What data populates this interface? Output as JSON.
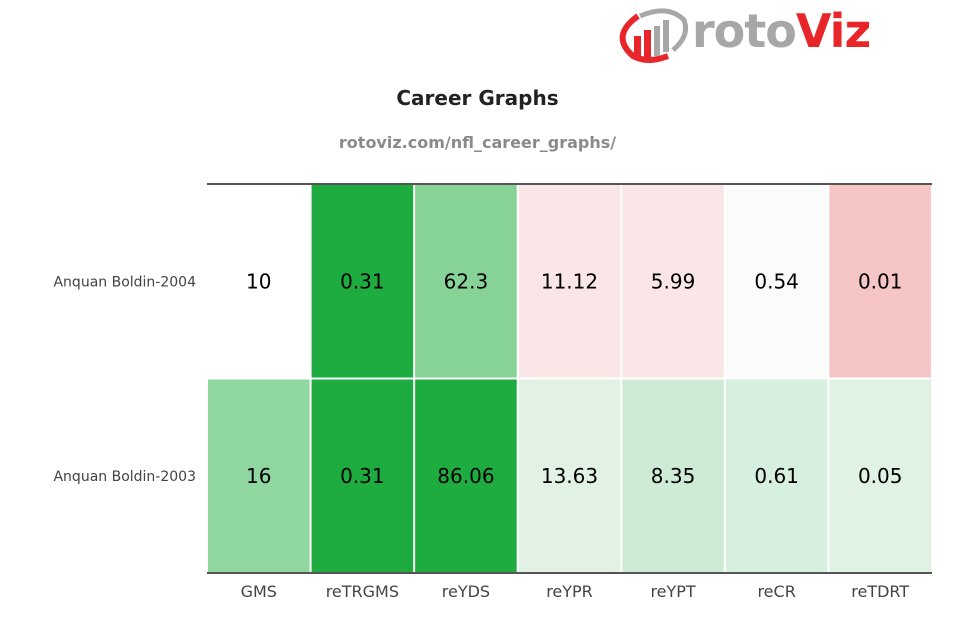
{
  "logo": {
    "text_main": "roto",
    "text_accent": "Viz"
  },
  "chart_data": {
    "type": "heatmap",
    "title": "Career Graphs",
    "subtitle": "rotoviz.com/nfl_career_graphs/",
    "columns": [
      "GMS",
      "reTRGMS",
      "reYDS",
      "reYPR",
      "reYPT",
      "reCR",
      "reTDRT"
    ],
    "rows": [
      {
        "label": "Anquan Boldin-2004",
        "values": [
          "10",
          "0.31",
          "62.3",
          "11.12",
          "5.99",
          "0.54",
          "0.01"
        ],
        "colors": [
          "#ffffff",
          "#1eac40",
          "#86d297",
          "#fae6e6",
          "#fae6e6",
          "#fafcfa",
          "#f6c5c5"
        ]
      },
      {
        "label": "Anquan Boldin-2003",
        "values": [
          "16",
          "0.31",
          "86.06",
          "13.63",
          "8.35",
          "0.61",
          "0.05"
        ],
        "colors": [
          "#90d6a0",
          "#1eac40",
          "#1eac40",
          "#e1f2e5",
          "#cdebd5",
          "#d7efde",
          "#dff2e4"
        ]
      }
    ]
  }
}
